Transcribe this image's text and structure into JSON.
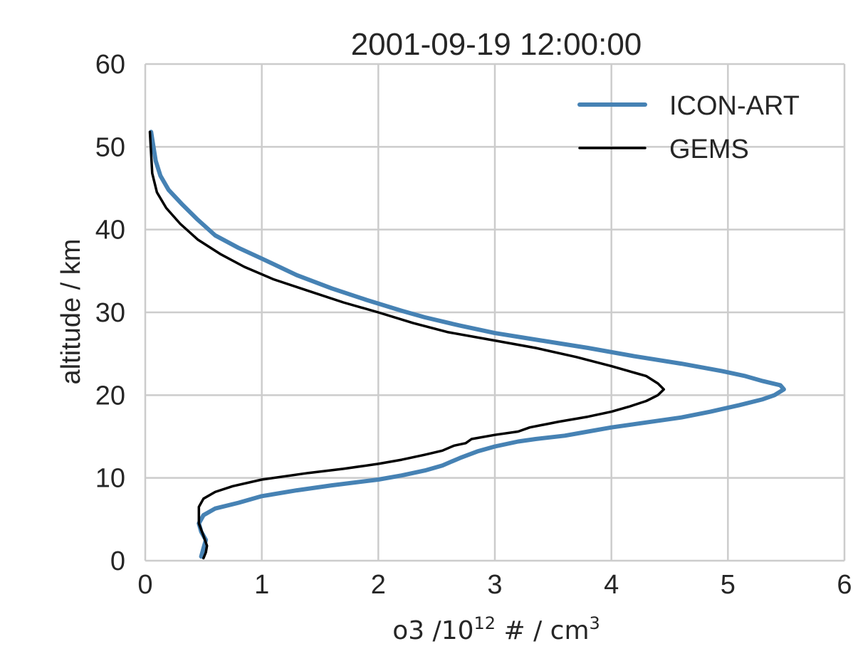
{
  "chart_data": {
    "type": "line",
    "title": "2001-09-19 12:00:00",
    "xlabel": "o3 /10",
    "xlabel_exp": "12",
    "xlabel_suffix": " # / cm",
    "xlabel_suffix_exp": "3",
    "ylabel": "altitude / km",
    "xlim": [
      0,
      6
    ],
    "ylim": [
      0,
      60
    ],
    "xticks": [
      "0",
      "1",
      "2",
      "3",
      "4",
      "5",
      "6"
    ],
    "yticks": [
      "0",
      "10",
      "20",
      "30",
      "40",
      "50",
      "60"
    ],
    "grid": true,
    "legend_position": "top-right",
    "series": [
      {
        "name": "ICON-ART",
        "color": "#4682b4",
        "x": [
          0.48,
          0.5,
          0.52,
          0.48,
          0.46,
          0.5,
          0.6,
          0.8,
          1.0,
          1.3,
          1.6,
          2.0,
          2.2,
          2.4,
          2.55,
          2.7,
          2.85,
          3.0,
          3.2,
          3.35,
          3.6,
          3.8,
          4.0,
          4.3,
          4.6,
          4.85,
          5.1,
          5.3,
          5.4,
          5.48,
          5.45,
          5.3,
          5.15,
          4.95,
          4.6,
          4.2,
          3.8,
          3.4,
          3.0,
          2.7,
          2.4,
          2.2,
          1.9,
          1.6,
          1.3,
          1.0,
          0.8,
          0.6,
          0.45,
          0.32,
          0.2,
          0.13,
          0.09,
          0.07,
          0.05
        ],
        "y": [
          0.5,
          1.5,
          2.5,
          3.5,
          4.5,
          5.5,
          6.3,
          7.0,
          7.8,
          8.5,
          9.1,
          9.8,
          10.3,
          10.9,
          11.5,
          12.4,
          13.2,
          13.8,
          14.4,
          14.7,
          15.1,
          15.6,
          16.1,
          16.7,
          17.3,
          18.0,
          18.8,
          19.5,
          20.0,
          20.7,
          21.2,
          21.7,
          22.3,
          22.9,
          23.8,
          24.7,
          25.7,
          26.6,
          27.5,
          28.4,
          29.4,
          30.2,
          31.5,
          32.9,
          34.5,
          36.5,
          37.8,
          39.3,
          41.2,
          43.0,
          44.8,
          46.5,
          48.3,
          50.0,
          51.8
        ]
      },
      {
        "name": "GEMS",
        "color": "#000000",
        "x": [
          0.5,
          0.52,
          0.53,
          0.5,
          0.46,
          0.46,
          0.5,
          0.6,
          0.75,
          1.0,
          1.4,
          1.7,
          2.0,
          2.2,
          2.4,
          2.55,
          2.65,
          2.75,
          2.8,
          3.0,
          3.2,
          3.3,
          3.55,
          3.8,
          4.0,
          4.15,
          4.3,
          4.4,
          4.45,
          4.4,
          4.3,
          4.15,
          4.0,
          3.7,
          3.35,
          3.0,
          2.6,
          2.3,
          2.0,
          1.7,
          1.4,
          1.1,
          0.85,
          0.65,
          0.45,
          0.3,
          0.18,
          0.1,
          0.06,
          0.04
        ],
        "y": [
          0.3,
          1.0,
          1.8,
          3.0,
          4.5,
          6.5,
          7.5,
          8.3,
          9.0,
          9.8,
          10.6,
          11.1,
          11.7,
          12.2,
          12.8,
          13.3,
          13.9,
          14.2,
          14.7,
          15.2,
          15.6,
          16.1,
          16.8,
          17.4,
          18.0,
          18.6,
          19.3,
          20.0,
          20.7,
          21.4,
          22.3,
          22.9,
          23.5,
          24.6,
          25.7,
          26.6,
          27.6,
          28.7,
          30.0,
          31.2,
          32.6,
          34.0,
          35.5,
          37.0,
          38.8,
          40.7,
          42.6,
          44.5,
          46.8,
          51.8
        ]
      }
    ]
  }
}
